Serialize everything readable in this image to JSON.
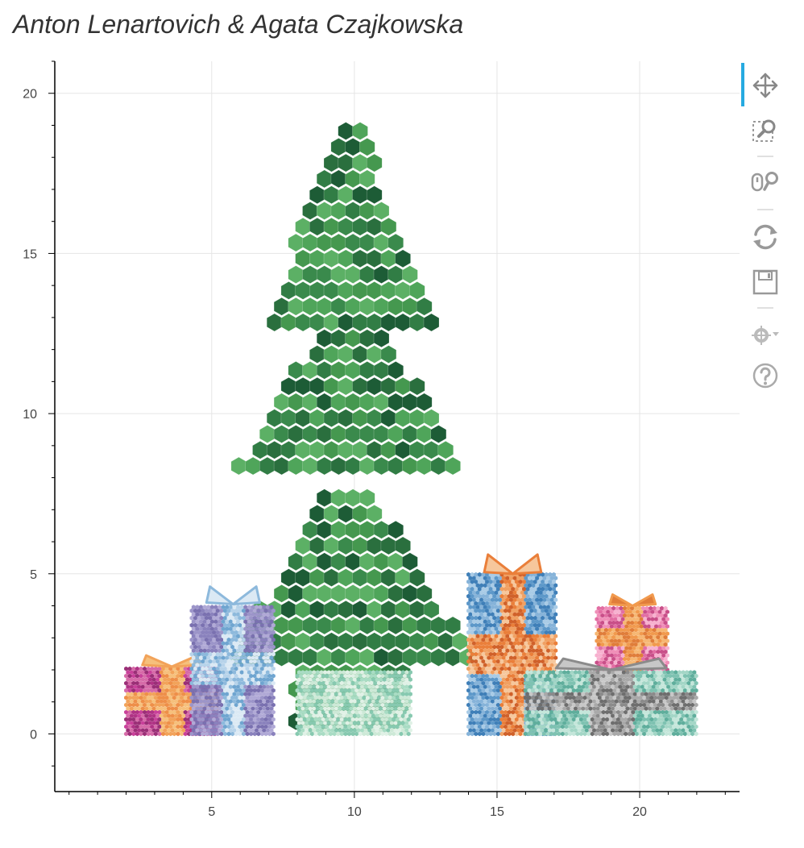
{
  "title": "Anton Lenartovich & Agata Czajkowska",
  "colors": {
    "tree": [
      "#1d5c36",
      "#2a6f3e",
      "#317d45",
      "#3a8a4c",
      "#45984f",
      "#4fa55a",
      "#5cb065"
    ],
    "gift_a_box": [
      "#c9419a",
      "#b03385",
      "#d66aa8",
      "#9b2f77"
    ],
    "gift_a_ribbon": [
      "#f2a35a",
      "#ee8f49",
      "#f6c07c"
    ],
    "gift_b_box": [
      "#9c95c9",
      "#8a82bd",
      "#b0a9d6",
      "#7a71b0"
    ],
    "gift_b_ribbon": [
      "#8db9dc",
      "#6fa5d0",
      "#b7d3ea",
      "#dbe9f4"
    ],
    "gift_c_box": [
      "#a9dcc4",
      "#cde9d7",
      "#87c9b0",
      "#e0f1e6"
    ],
    "gift_d_box": [
      "#5d98c9",
      "#86b3d9",
      "#3f7fb8",
      "#a9cbe6"
    ],
    "gift_d_ribbon": [
      "#ea7f3a",
      "#d0612a",
      "#f0a062",
      "#f6c79c"
    ],
    "gift_e_box": [
      "#e26ea3",
      "#f08fb8",
      "#c94f89",
      "#f7b1cf"
    ],
    "gift_e_ribbon": [
      "#f19a4e",
      "#f6b773",
      "#e07d3a"
    ],
    "gift_f_box": [
      "#a3d6c6",
      "#7ec2b1",
      "#c4e6da",
      "#5fae9c"
    ],
    "gift_f_ribbon": [
      "#8b8b8b",
      "#a9a9a9",
      "#6e6e6e",
      "#c7c7c7"
    ],
    "accent": "#26aae1"
  },
  "chart_data": {
    "type": "scatter",
    "marker": "hexagon",
    "xlim": [
      -0.5,
      23.5
    ],
    "ylim": [
      -1.8,
      21.0
    ],
    "xticks": [
      5,
      10,
      15,
      20
    ],
    "yticks": [
      0,
      5,
      10,
      15,
      20
    ],
    "grid": true,
    "xlabel": "",
    "ylabel": "",
    "series": [
      {
        "shape": "tree",
        "points_desc": "tapered tiers",
        "tiers": [
          {
            "y0": 12.8,
            "y1": 19.2,
            "w0": 6.2,
            "w1": 0.4
          },
          {
            "y0": 8.0,
            "y1": 13.5,
            "w0": 8.4,
            "w1": 1.2
          },
          {
            "y0": 2.0,
            "y1": 7.6,
            "w0": 9.0,
            "w1": 1.6
          },
          {
            "y0": 0.0,
            "y1": 2.0,
            "w0": 4.0,
            "w1": 4.0
          }
        ],
        "center_x": 9.9
      },
      {
        "shape": "gift",
        "name": "",
        "x": [
          2.0,
          5.2
        ],
        "y": [
          0.0,
          2.1
        ],
        "box": "gift_a_box",
        "ribbon": "gift_a_ribbon",
        "bow_y": 2.45
      },
      {
        "shape": "gift",
        "name": "",
        "x": [
          4.3,
          7.2
        ],
        "y": [
          0.0,
          4.05
        ],
        "box": "gift_b_box",
        "ribbon": "gift_b_ribbon",
        "bow_y": 4.6
      },
      {
        "shape": "gift",
        "name": "",
        "x": [
          8.0,
          12.0
        ],
        "y": [
          0.0,
          2.0
        ],
        "box": "gift_c_box",
        "ribbon": null,
        "bow_y": null
      },
      {
        "shape": "gift",
        "name": "",
        "x": [
          14.0,
          17.1
        ],
        "y": [
          0.0,
          5.0
        ],
        "box": "gift_d_box",
        "ribbon": "gift_d_ribbon",
        "bow_y": 5.6
      },
      {
        "shape": "gift",
        "name": "",
        "x": [
          18.5,
          21.0
        ],
        "y": [
          2.0,
          4.0
        ],
        "box": "gift_e_box",
        "ribbon": "gift_e_ribbon",
        "bow_y": 4.35
      },
      {
        "shape": "gift",
        "name": "",
        "x": [
          16.0,
          22.0
        ],
        "y": [
          0.0,
          2.0
        ],
        "box": "gift_f_box",
        "ribbon": "gift_f_ribbon",
        "bow_y": 2.35
      }
    ]
  },
  "toolbar": {
    "tools": [
      {
        "name": "pan-tool",
        "icon": "pan-icon",
        "active": true
      },
      {
        "name": "box-zoom-tool",
        "icon": "box-zoom-icon",
        "active": false
      },
      {
        "name": "wheel-zoom-tool",
        "icon": "wheel-zoom-icon",
        "active": false
      },
      {
        "name": "reset-tool",
        "icon": "reset-icon",
        "active": false
      },
      {
        "name": "save-tool",
        "icon": "save-icon",
        "active": false
      },
      {
        "name": "hover-tool",
        "icon": "hover-icon",
        "active": false
      },
      {
        "name": "help-tool",
        "icon": "help-icon",
        "active": false
      }
    ]
  }
}
